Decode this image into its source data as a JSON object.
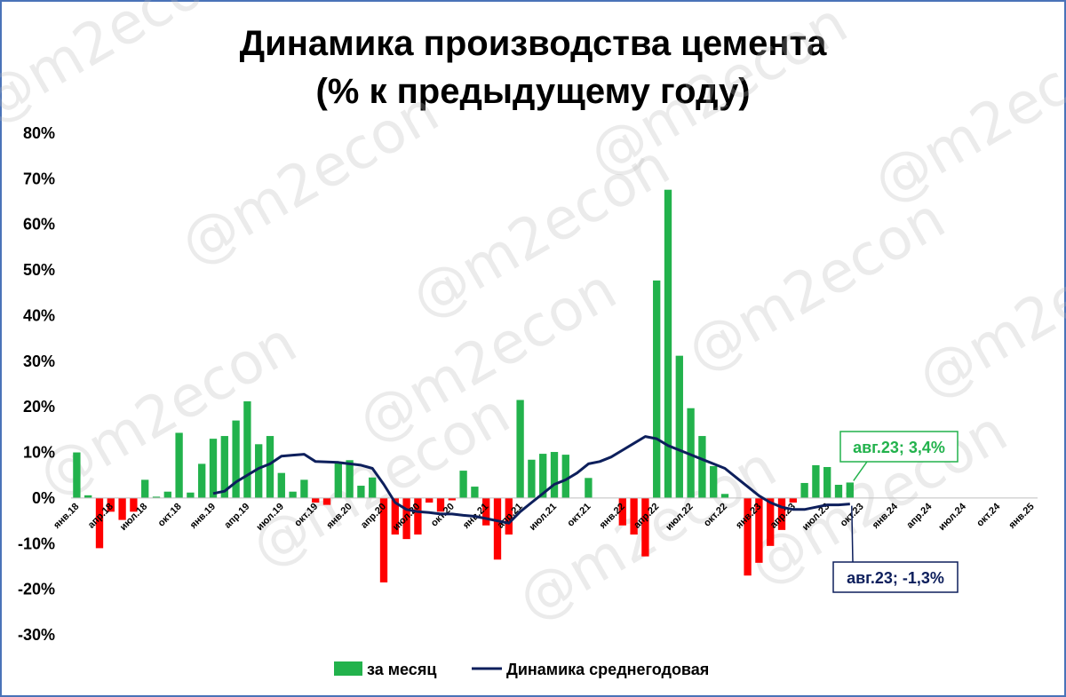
{
  "chart_data": {
    "type": "bar+line",
    "title_line1": "Динамика производства цемента",
    "title_line2": "(% к предыдущему году)",
    "ylim": [
      -30,
      80
    ],
    "yticks": [
      "80%",
      "70%",
      "60%",
      "50%",
      "40%",
      "30%",
      "20%",
      "10%",
      "0%",
      "-10%",
      "-20%",
      "-30%"
    ],
    "ytick_values": [
      80,
      70,
      60,
      50,
      40,
      30,
      20,
      10,
      0,
      -10,
      -20,
      -30
    ],
    "months": [
      "янв.18",
      "фев.18",
      "мар.18",
      "апр.18",
      "май.18",
      "июн.18",
      "июл.18",
      "авг.18",
      "сен.18",
      "окт.18",
      "ноя.18",
      "дек.18",
      "янв.19",
      "фев.19",
      "мар.19",
      "апр.19",
      "май.19",
      "июн.19",
      "июл.19",
      "авг.19",
      "сен.19",
      "окт.19",
      "ноя.19",
      "дек.19",
      "янв.20",
      "фев.20",
      "мар.20",
      "апр.20",
      "май.20",
      "июн.20",
      "июл.20",
      "авг.20",
      "сен.20",
      "окт.20",
      "ноя.20",
      "дек.20",
      "янв.21",
      "фев.21",
      "мар.21",
      "апр.21",
      "май.21",
      "июн.21",
      "июл.21",
      "авг.21",
      "сен.21",
      "окт.21",
      "ноя.21",
      "дек.21",
      "янв.22",
      "фев.22",
      "мар.22",
      "апр.22",
      "май.22",
      "июн.22",
      "июл.22",
      "авг.22",
      "сен.22",
      "окт.22",
      "ноя.22",
      "дек.22",
      "янв.23",
      "фев.23",
      "мар.23",
      "апр.23",
      "май.23",
      "июн.23",
      "июл.23",
      "авг.23",
      "сен.23",
      "окт.23",
      "ноя.23",
      "дек.23",
      "янв.24",
      "фев.24",
      "мар.24",
      "апр.24",
      "май.24",
      "июн.24",
      "июл.24",
      "авг.24",
      "сен.24",
      "окт.24",
      "ноя.24",
      "дек.24",
      "янв.25"
    ],
    "xtick_labels": [
      {
        "index": 0,
        "label": "янв.18"
      },
      {
        "index": 3,
        "label": "апр.18"
      },
      {
        "index": 6,
        "label": "июл.18"
      },
      {
        "index": 9,
        "label": "окт.18"
      },
      {
        "index": 12,
        "label": "янв.19"
      },
      {
        "index": 15,
        "label": "апр.19"
      },
      {
        "index": 18,
        "label": "июл.19"
      },
      {
        "index": 21,
        "label": "окт.19"
      },
      {
        "index": 24,
        "label": "янв.20"
      },
      {
        "index": 27,
        "label": "апр.20"
      },
      {
        "index": 30,
        "label": "июл.20"
      },
      {
        "index": 33,
        "label": "окт.20"
      },
      {
        "index": 36,
        "label": "янв.21"
      },
      {
        "index": 39,
        "label": "апр.21"
      },
      {
        "index": 42,
        "label": "июл.21"
      },
      {
        "index": 45,
        "label": "окт.21"
      },
      {
        "index": 48,
        "label": "янв.22"
      },
      {
        "index": 51,
        "label": "апр.22"
      },
      {
        "index": 54,
        "label": "июл.22"
      },
      {
        "index": 57,
        "label": "окт.22"
      },
      {
        "index": 60,
        "label": "янв.23"
      },
      {
        "index": 63,
        "label": "апр.23"
      },
      {
        "index": 66,
        "label": "июл.23"
      },
      {
        "index": 69,
        "label": "окт.23"
      },
      {
        "index": 72,
        "label": "янв.24"
      },
      {
        "index": 75,
        "label": "апр.24"
      },
      {
        "index": 78,
        "label": "июл.24"
      },
      {
        "index": 81,
        "label": "окт.24"
      },
      {
        "index": 84,
        "label": "янв.25"
      }
    ],
    "series": [
      {
        "name": "за месяц",
        "kind": "bar",
        "positive_color": "#22b24c",
        "negative_color": "#ff0000",
        "values": [
          10.0,
          0.6,
          -11.0,
          -3.0,
          -4.8,
          -3.0,
          4.0,
          0.3,
          1.4,
          14.3,
          1.2,
          7.5,
          13.0,
          13.6,
          17.0,
          21.2,
          11.8,
          13.6,
          5.5,
          1.4,
          4.0,
          -1.0,
          -1.5,
          7.8,
          8.3,
          2.7,
          4.5,
          -18.5,
          -8.0,
          -9.0,
          -8.0,
          -1.0,
          -3.0,
          -0.5,
          6.0,
          2.5,
          -6.0,
          -13.5,
          -8.0,
          21.5,
          8.4,
          9.7,
          10.1,
          9.5,
          null,
          4.4,
          null,
          null,
          -6.0,
          -8.0,
          -12.8,
          47.7,
          67.6,
          31.2,
          19.7,
          13.6,
          7.0,
          0.9,
          null,
          -17.0,
          -14.2,
          -10.5,
          -7.0,
          -1.0,
          3.3,
          7.2,
          6.8,
          2.9,
          3.4
        ]
      },
      {
        "name": "Динамика среднегодовая",
        "kind": "line",
        "color": "#0d1f5c",
        "values": [
          null,
          null,
          null,
          null,
          null,
          null,
          null,
          null,
          null,
          null,
          null,
          null,
          1.0,
          1.5,
          3.5,
          5.0,
          6.5,
          7.5,
          9.2,
          9.4,
          9.6,
          8.0,
          7.9,
          7.8,
          7.5,
          7.2,
          6.5,
          3.0,
          -1.0,
          -2.5,
          -3.0,
          -3.2,
          -3.5,
          -3.5,
          -3.8,
          -4.0,
          -4.5,
          -5.0,
          -5.5,
          -3.0,
          -1.0,
          1.0,
          3.0,
          4.0,
          5.5,
          7.5,
          8.0,
          9.0,
          10.5,
          12.0,
          13.5,
          13.0,
          11.5,
          10.5,
          9.5,
          8.5,
          7.5,
          6.5,
          4.5,
          2.5,
          0.5,
          -1.0,
          -2.0,
          -2.5,
          -2.5,
          -2.0,
          -1.5,
          -1.5,
          -1.3
        ]
      }
    ],
    "legend": {
      "placement": "bottom-center"
    },
    "annotations": [
      {
        "text": "авг.23; 3,4%",
        "series": "за месяц",
        "color": "#22b24c",
        "bg": "#ffffff"
      },
      {
        "text": "авг.23; -1,3%",
        "series": "Динамика среднегодовая",
        "color": "#0d1f5c",
        "bg": "#ffffff"
      }
    ],
    "watermark": "@m2econ",
    "grid": false
  }
}
